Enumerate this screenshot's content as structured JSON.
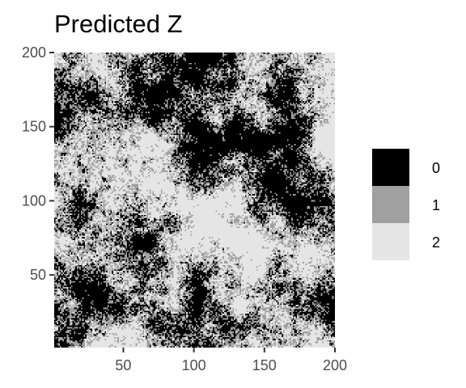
{
  "chart_data": {
    "type": "heatmap",
    "title": "Predicted Z",
    "xlabel": "",
    "ylabel": "",
    "xlim": [
      1,
      200
    ],
    "ylim": [
      1,
      200
    ],
    "grid_size": 200,
    "x_ticks": [
      50,
      100,
      150,
      200
    ],
    "y_ticks": [
      50,
      100,
      150,
      200
    ],
    "categories": [
      "0",
      "1",
      "2"
    ],
    "colors": {
      "0": "#000000",
      "1": "#a0a0a0",
      "2": "#e5e5e5"
    },
    "legend_position": "right",
    "grid": false,
    "note_on_cells": "random-field pattern of classes 0/1/2 over a 200x200 grid"
  }
}
